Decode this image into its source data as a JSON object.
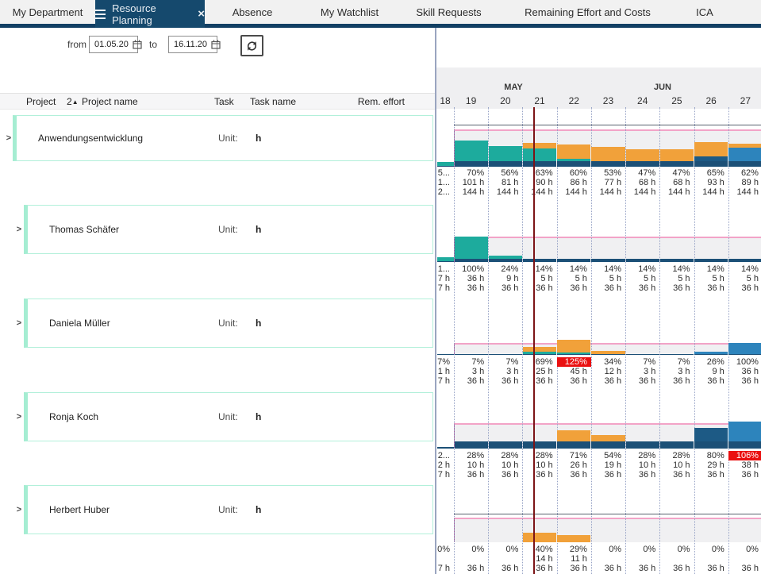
{
  "tab_bar": {
    "tabs": [
      {
        "label": "My Department",
        "active": false
      },
      {
        "label": "Resource Planning",
        "active": true
      },
      {
        "label": "Absence",
        "active": false
      },
      {
        "label": "My Watchlist",
        "active": false
      },
      {
        "label": "Skill Requests",
        "active": false
      },
      {
        "label": "Remaining Effort and Costs",
        "active": false
      },
      {
        "label": "ICA",
        "active": false
      }
    ],
    "active_tab_icons": [
      "hamburger-icon",
      "close-icon"
    ]
  },
  "toolbar": {
    "from_label": "from",
    "from_value": "01.05.20",
    "to_label": "to",
    "to_value": "16.11.20",
    "refresh_icon": "refresh-arrows"
  },
  "grid": {
    "headers": {
      "project": "Project",
      "sort_order": "2",
      "sort_dir": "▲",
      "project_name": "Project name",
      "task": "Task",
      "task_name": "Task name",
      "rem_effort": "Rem. effort"
    },
    "rows": [
      {
        "name": "Anwendungsentwicklung",
        "unit_label": "Unit:",
        "unit_value": "h",
        "level": 0
      },
      {
        "name": "Thomas Schäfer",
        "unit_label": "Unit:",
        "unit_value": "h",
        "level": 1
      },
      {
        "name": "Daniela Müller",
        "unit_label": "Unit:",
        "unit_value": "h",
        "level": 1
      },
      {
        "name": "Ronja Koch",
        "unit_label": "Unit:",
        "unit_value": "h",
        "level": 1
      },
      {
        "name": "Herbert Huber",
        "unit_label": "Unit:",
        "unit_value": "h",
        "level": 1
      }
    ]
  },
  "chart_data": {
    "type": "stacked-bar-timeline",
    "months": [
      "MAY",
      "JUN"
    ],
    "weeks": [
      "18",
      "19",
      "20",
      "21",
      "22",
      "23",
      "24",
      "25",
      "26",
      "27"
    ],
    "unit": "h",
    "capacity_line_color": "#f2a3c7",
    "today_marker_week": "21",
    "colors": {
      "navy": "#1c5077",
      "teal": "#1dab9d",
      "orange": "#f1a13a",
      "darkblue": "#1d5a85",
      "midblue": "#2d84bc",
      "overload_badge": "#ea1010",
      "today": "#7c1417",
      "band": "#f0f0f2"
    },
    "rows": [
      {
        "name": "Anwendungsentwicklung",
        "columns": [
          {
            "pct": "5...",
            "used": "1...",
            "cap": "2...",
            "overload": false,
            "segments": [
              [
                "navy",
                3
              ],
              [
                "teal",
                9
              ]
            ]
          },
          {
            "pct": "70%",
            "used": "101 h",
            "cap": "144 h",
            "overload": false,
            "segments": [
              [
                "navy",
                15
              ],
              [
                "teal",
                55
              ]
            ]
          },
          {
            "pct": "56%",
            "used": "81 h",
            "cap": "144 h",
            "overload": false,
            "segments": [
              [
                "navy",
                15
              ],
              [
                "teal",
                41
              ]
            ]
          },
          {
            "pct": "63%",
            "used": "90 h",
            "cap": "144 h",
            "overload": false,
            "segments": [
              [
                "navy",
                15
              ],
              [
                "teal",
                33
              ],
              [
                "orange",
                15
              ]
            ]
          },
          {
            "pct": "60%",
            "used": "86 h",
            "cap": "144 h",
            "overload": false,
            "segments": [
              [
                "navy",
                15
              ],
              [
                "teal",
                7
              ],
              [
                "orange",
                38
              ]
            ]
          },
          {
            "pct": "53%",
            "used": "77 h",
            "cap": "144 h",
            "overload": false,
            "segments": [
              [
                "navy",
                15
              ],
              [
                "orange",
                38
              ]
            ]
          },
          {
            "pct": "47%",
            "used": "68 h",
            "cap": "144 h",
            "overload": false,
            "segments": [
              [
                "navy",
                15
              ],
              [
                "orange",
                32
              ]
            ]
          },
          {
            "pct": "47%",
            "used": "68 h",
            "cap": "144 h",
            "overload": false,
            "segments": [
              [
                "navy",
                15
              ],
              [
                "orange",
                32
              ]
            ]
          },
          {
            "pct": "65%",
            "used": "93 h",
            "cap": "144 h",
            "overload": false,
            "segments": [
              [
                "navy",
                15
              ],
              [
                "darkblue",
                13
              ],
              [
                "orange",
                37
              ]
            ]
          },
          {
            "pct": "62%",
            "used": "89 h",
            "cap": "144 h",
            "overload": false,
            "segments": [
              [
                "navy",
                15
              ],
              [
                "midblue",
                36
              ],
              [
                "orange",
                11
              ]
            ]
          }
        ]
      },
      {
        "name": "Thomas Schäfer",
        "columns": [
          {
            "pct": "1...",
            "used": "7 h",
            "cap": "7 h",
            "overload": false,
            "segments": [
              [
                "navy",
                4
              ],
              [
                "teal",
                16
              ]
            ]
          },
          {
            "pct": "100%",
            "used": "36 h",
            "cap": "36 h",
            "overload": false,
            "segments": [
              [
                "navy",
                14
              ],
              [
                "teal",
                86
              ]
            ]
          },
          {
            "pct": "24%",
            "used": "9 h",
            "cap": "36 h",
            "overload": false,
            "segments": [
              [
                "navy",
                14
              ],
              [
                "teal",
                10
              ]
            ]
          },
          {
            "pct": "14%",
            "used": "5 h",
            "cap": "36 h",
            "overload": false,
            "segments": [
              [
                "navy",
                14
              ]
            ]
          },
          {
            "pct": "14%",
            "used": "5 h",
            "cap": "36 h",
            "overload": false,
            "segments": [
              [
                "navy",
                14
              ]
            ]
          },
          {
            "pct": "14%",
            "used": "5 h",
            "cap": "36 h",
            "overload": false,
            "segments": [
              [
                "navy",
                14
              ]
            ]
          },
          {
            "pct": "14%",
            "used": "5 h",
            "cap": "36 h",
            "overload": false,
            "segments": [
              [
                "navy",
                14
              ]
            ]
          },
          {
            "pct": "14%",
            "used": "5 h",
            "cap": "36 h",
            "overload": false,
            "segments": [
              [
                "navy",
                14
              ]
            ]
          },
          {
            "pct": "14%",
            "used": "5 h",
            "cap": "36 h",
            "overload": false,
            "segments": [
              [
                "navy",
                14
              ]
            ]
          },
          {
            "pct": "14%",
            "used": "5 h",
            "cap": "36 h",
            "overload": false,
            "segments": [
              [
                "navy",
                14
              ]
            ]
          }
        ]
      },
      {
        "name": "Daniela Müller",
        "columns": [
          {
            "pct": "7%",
            "used": "1 h",
            "cap": "7 h",
            "overload": false,
            "segments": [
              [
                "navy",
                3
              ]
            ]
          },
          {
            "pct": "7%",
            "used": "3 h",
            "cap": "36 h",
            "overload": false,
            "segments": [
              [
                "navy",
                7
              ]
            ]
          },
          {
            "pct": "7%",
            "used": "3 h",
            "cap": "36 h",
            "overload": false,
            "segments": [
              [
                "navy",
                7
              ]
            ]
          },
          {
            "pct": "69%",
            "used": "25 h",
            "cap": "36 h",
            "overload": false,
            "segments": [
              [
                "navy",
                7
              ],
              [
                "teal",
                17
              ],
              [
                "orange",
                45
              ]
            ]
          },
          {
            "pct": "125%",
            "used": "45 h",
            "cap": "36 h",
            "overload": true,
            "segments": [
              [
                "navy",
                7
              ],
              [
                "teal",
                13
              ],
              [
                "orange",
                105
              ]
            ]
          },
          {
            "pct": "34%",
            "used": "12 h",
            "cap": "36 h",
            "overload": false,
            "segments": [
              [
                "navy",
                7
              ],
              [
                "orange",
                27
              ]
            ]
          },
          {
            "pct": "7%",
            "used": "3 h",
            "cap": "36 h",
            "overload": false,
            "segments": [
              [
                "navy",
                7
              ]
            ]
          },
          {
            "pct": "7%",
            "used": "3 h",
            "cap": "36 h",
            "overload": false,
            "segments": [
              [
                "navy",
                7
              ]
            ]
          },
          {
            "pct": "26%",
            "used": "9 h",
            "cap": "36 h",
            "overload": false,
            "segments": [
              [
                "navy",
                7
              ],
              [
                "midblue",
                19
              ]
            ]
          },
          {
            "pct": "100%",
            "used": "36 h",
            "cap": "36 h",
            "overload": false,
            "segments": [
              [
                "navy",
                7
              ],
              [
                "midblue",
                93
              ]
            ]
          }
        ]
      },
      {
        "name": "Ronja Koch",
        "columns": [
          {
            "pct": "2...",
            "used": "2 h",
            "cap": "7 h",
            "overload": false,
            "segments": [
              [
                "navy",
                6
              ]
            ]
          },
          {
            "pct": "28%",
            "used": "10 h",
            "cap": "36 h",
            "overload": false,
            "segments": [
              [
                "navy",
                28
              ]
            ]
          },
          {
            "pct": "28%",
            "used": "10 h",
            "cap": "36 h",
            "overload": false,
            "segments": [
              [
                "navy",
                28
              ]
            ]
          },
          {
            "pct": "28%",
            "used": "10 h",
            "cap": "36 h",
            "overload": false,
            "segments": [
              [
                "navy",
                28
              ]
            ]
          },
          {
            "pct": "71%",
            "used": "26 h",
            "cap": "36 h",
            "overload": false,
            "segments": [
              [
                "navy",
                28
              ],
              [
                "orange",
                43
              ]
            ]
          },
          {
            "pct": "54%",
            "used": "19 h",
            "cap": "36 h",
            "overload": false,
            "segments": [
              [
                "navy",
                28
              ],
              [
                "orange",
                26
              ]
            ]
          },
          {
            "pct": "28%",
            "used": "10 h",
            "cap": "36 h",
            "overload": false,
            "segments": [
              [
                "navy",
                28
              ]
            ]
          },
          {
            "pct": "28%",
            "used": "10 h",
            "cap": "36 h",
            "overload": false,
            "segments": [
              [
                "navy",
                28
              ]
            ]
          },
          {
            "pct": "80%",
            "used": "29 h",
            "cap": "36 h",
            "overload": false,
            "segments": [
              [
                "navy",
                28
              ],
              [
                "darkblue",
                52
              ]
            ]
          },
          {
            "pct": "106%",
            "used": "38 h",
            "cap": "36 h",
            "overload": true,
            "segments": [
              [
                "navy",
                28
              ],
              [
                "midblue",
                78
              ]
            ]
          }
        ]
      },
      {
        "name": "Herbert Huber",
        "columns": [
          {
            "pct": "0%",
            "used": "",
            "cap": "7 h",
            "overload": false,
            "segments": []
          },
          {
            "pct": "0%",
            "used": "",
            "cap": "36 h",
            "overload": false,
            "segments": []
          },
          {
            "pct": "0%",
            "used": "",
            "cap": "36 h",
            "overload": false,
            "segments": []
          },
          {
            "pct": "40%",
            "used": "14 h",
            "cap": "36 h",
            "overload": false,
            "segments": [
              [
                "orange",
                40
              ]
            ]
          },
          {
            "pct": "29%",
            "used": "11 h",
            "cap": "36 h",
            "overload": false,
            "segments": [
              [
                "orange",
                29
              ]
            ]
          },
          {
            "pct": "0%",
            "used": "",
            "cap": "36 h",
            "overload": false,
            "segments": []
          },
          {
            "pct": "0%",
            "used": "",
            "cap": "36 h",
            "overload": false,
            "segments": []
          },
          {
            "pct": "0%",
            "used": "",
            "cap": "36 h",
            "overload": false,
            "segments": []
          },
          {
            "pct": "0%",
            "used": "",
            "cap": "36 h",
            "overload": false,
            "segments": []
          },
          {
            "pct": "0%",
            "used": "",
            "cap": "36 h",
            "overload": false,
            "segments": []
          }
        ]
      }
    ]
  }
}
